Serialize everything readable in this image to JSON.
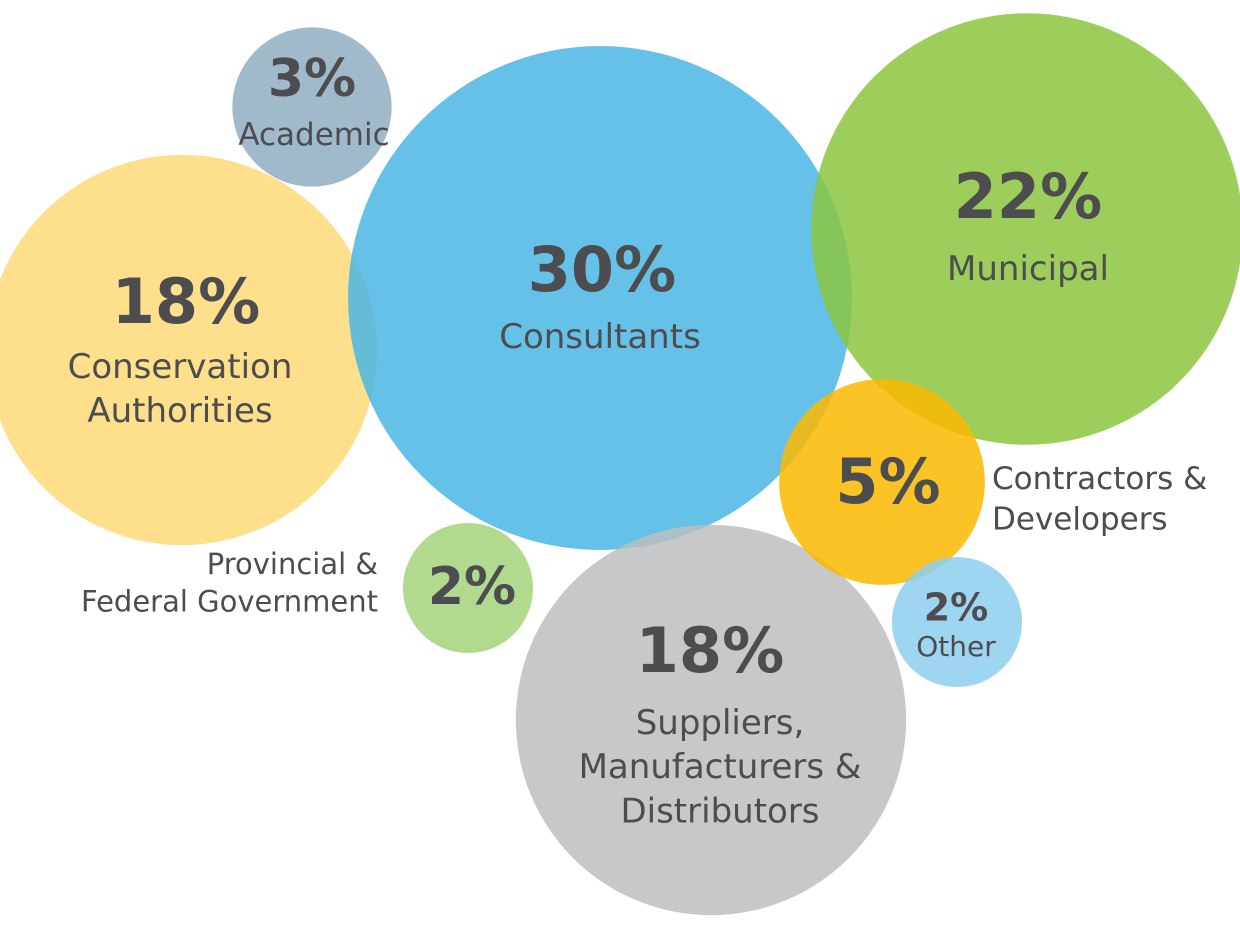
{
  "chart_data": {
    "type": "bubble",
    "categories": [
      "Academic",
      "Conservation\nAuthorities",
      "Consultants",
      "Municipal",
      "Contractors &\nDevelopers",
      "Provincial &\nFederal Government",
      "Suppliers,\nManufacturers &\nDistributors",
      "Other"
    ],
    "values": [
      3,
      18,
      30,
      22,
      5,
      2,
      18,
      2
    ],
    "value_labels": [
      "3%",
      "18%",
      "30%",
      "22%",
      "5%",
      "2%",
      "18%",
      "2%"
    ],
    "colors": [
      "#8fadc2",
      "#fdd978",
      "#4ab6e4",
      "#8cc63f",
      "#fbb900",
      "#a5d47a",
      "#bcbec0",
      "#8dcfee"
    ]
  }
}
